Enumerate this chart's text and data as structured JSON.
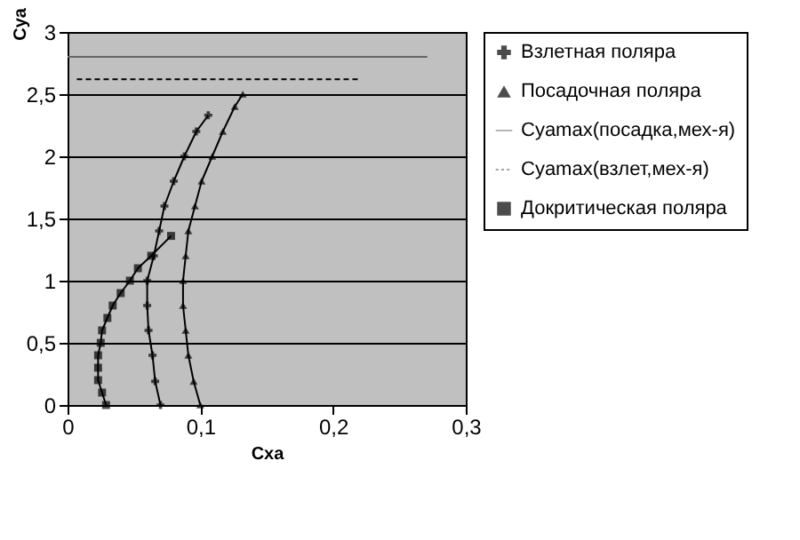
{
  "chart_data": {
    "type": "line",
    "xlabel": "Cxa",
    "ylabel": "Cya",
    "xlim": [
      0,
      0.3
    ],
    "ylim": [
      0,
      3
    ],
    "xticks": [
      0,
      {
        "value": 0.1,
        "label": "0,1"
      },
      {
        "value": 0.2,
        "label": "0,2"
      },
      {
        "value": 0.3,
        "label": "0,3"
      }
    ],
    "yticks": [
      0,
      {
        "value": 0.5,
        "label": "0,5"
      },
      1,
      {
        "value": 1.5,
        "label": "1,5"
      },
      2,
      {
        "value": 2.5,
        "label": "2,5"
      },
      3
    ],
    "grid": "y",
    "legend": "right",
    "series": [
      {
        "name": "Взлетная поляра",
        "color": "#000000",
        "marker": "cross",
        "line_style": "solid",
        "x": [
          0.07,
          0.066,
          0.064,
          0.061,
          0.06,
          0.06,
          0.065,
          0.069,
          0.073,
          0.08,
          0.088,
          0.097,
          0.106
        ],
        "values": [
          0,
          0.19,
          0.4,
          0.6,
          0.8,
          1.0,
          1.2,
          1.4,
          1.6,
          1.8,
          2.0,
          2.2,
          2.33
        ]
      },
      {
        "name": "Посадочная поляра",
        "color": "#000000",
        "marker": "triangle",
        "line_style": "solid",
        "x": [
          0.1,
          0.095,
          0.091,
          0.089,
          0.087,
          0.087,
          0.089,
          0.091,
          0.096,
          0.101,
          0.109,
          0.117,
          0.126,
          0.132
        ],
        "values": [
          0,
          0.19,
          0.4,
          0.6,
          0.8,
          1.0,
          1.2,
          1.4,
          1.6,
          1.8,
          2.0,
          2.2,
          2.4,
          2.5
        ]
      },
      {
        "name": "Cyamax(посадка,мех-я)",
        "color": "#666666",
        "marker": "none",
        "line_style": "solid",
        "x": [
          0,
          0.271
        ],
        "values": [
          2.8,
          2.8
        ]
      },
      {
        "name": "Cyamax(взлет,мех-я)",
        "color": "#000000",
        "marker": "none",
        "line_style": "dashed",
        "x": [
          0.007,
          0.22
        ],
        "values": [
          2.62,
          2.62
        ]
      },
      {
        "name": "Докритическая поляра",
        "color": "#000000",
        "marker": "square",
        "line_style": "solid",
        "x": [
          0.029,
          0.026,
          0.023,
          0.023,
          0.023,
          0.025,
          0.026,
          0.03,
          0.034,
          0.04,
          0.047,
          0.053,
          0.063,
          0.078
        ],
        "values": [
          0,
          0.1,
          0.2,
          0.3,
          0.4,
          0.5,
          0.6,
          0.7,
          0.8,
          0.9,
          1.0,
          1.1,
          1.2,
          1.36
        ]
      }
    ]
  }
}
